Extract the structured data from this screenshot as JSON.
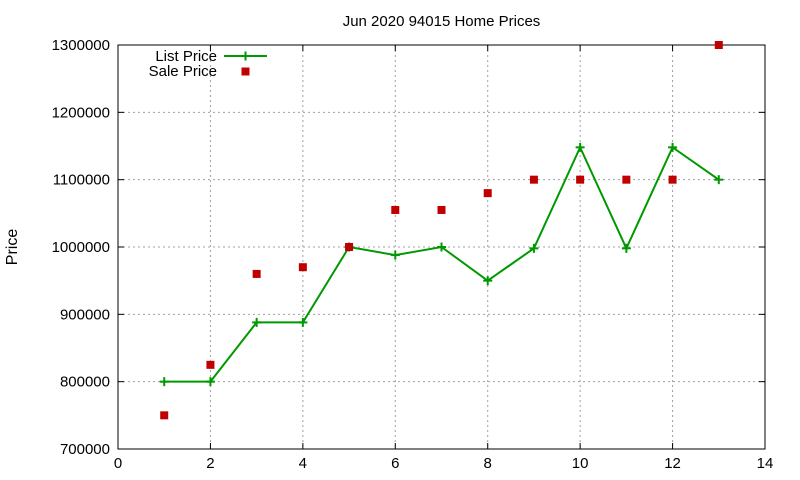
{
  "chart_data": {
    "type": "line",
    "title": "Jun 2020 94015 Home Prices",
    "xlabel": "",
    "ylabel": "Price",
    "xlim": [
      0,
      14
    ],
    "ylim": [
      700000,
      1300000
    ],
    "xticks": [
      "0",
      "2",
      "4",
      "6",
      "8",
      "10",
      "12",
      "14"
    ],
    "yticks": [
      "700000",
      "800000",
      "900000",
      "1000000",
      "1100000",
      "1200000",
      "1300000"
    ],
    "grid": true,
    "legend": "top-left",
    "series": [
      {
        "name": "List Price",
        "style": "line-plus",
        "color": "#009900",
        "x": [
          1,
          2,
          3,
          4,
          5,
          6,
          7,
          8,
          9,
          10,
          11,
          12,
          13
        ],
        "y": [
          800000,
          800000,
          888000,
          888000,
          1000000,
          988000,
          1000000,
          950000,
          998000,
          1148000,
          998000,
          1148000,
          1100000
        ]
      },
      {
        "name": "Sale Price",
        "style": "square",
        "color": "#c00000",
        "x": [
          1,
          2,
          3,
          4,
          5,
          6,
          7,
          8,
          9,
          10,
          11,
          12,
          13
        ],
        "y": [
          750000,
          825000,
          960000,
          970000,
          1000000,
          1055000,
          1055000,
          1080000,
          1100000,
          1100000,
          1100000,
          1100000,
          1300000
        ]
      }
    ]
  }
}
